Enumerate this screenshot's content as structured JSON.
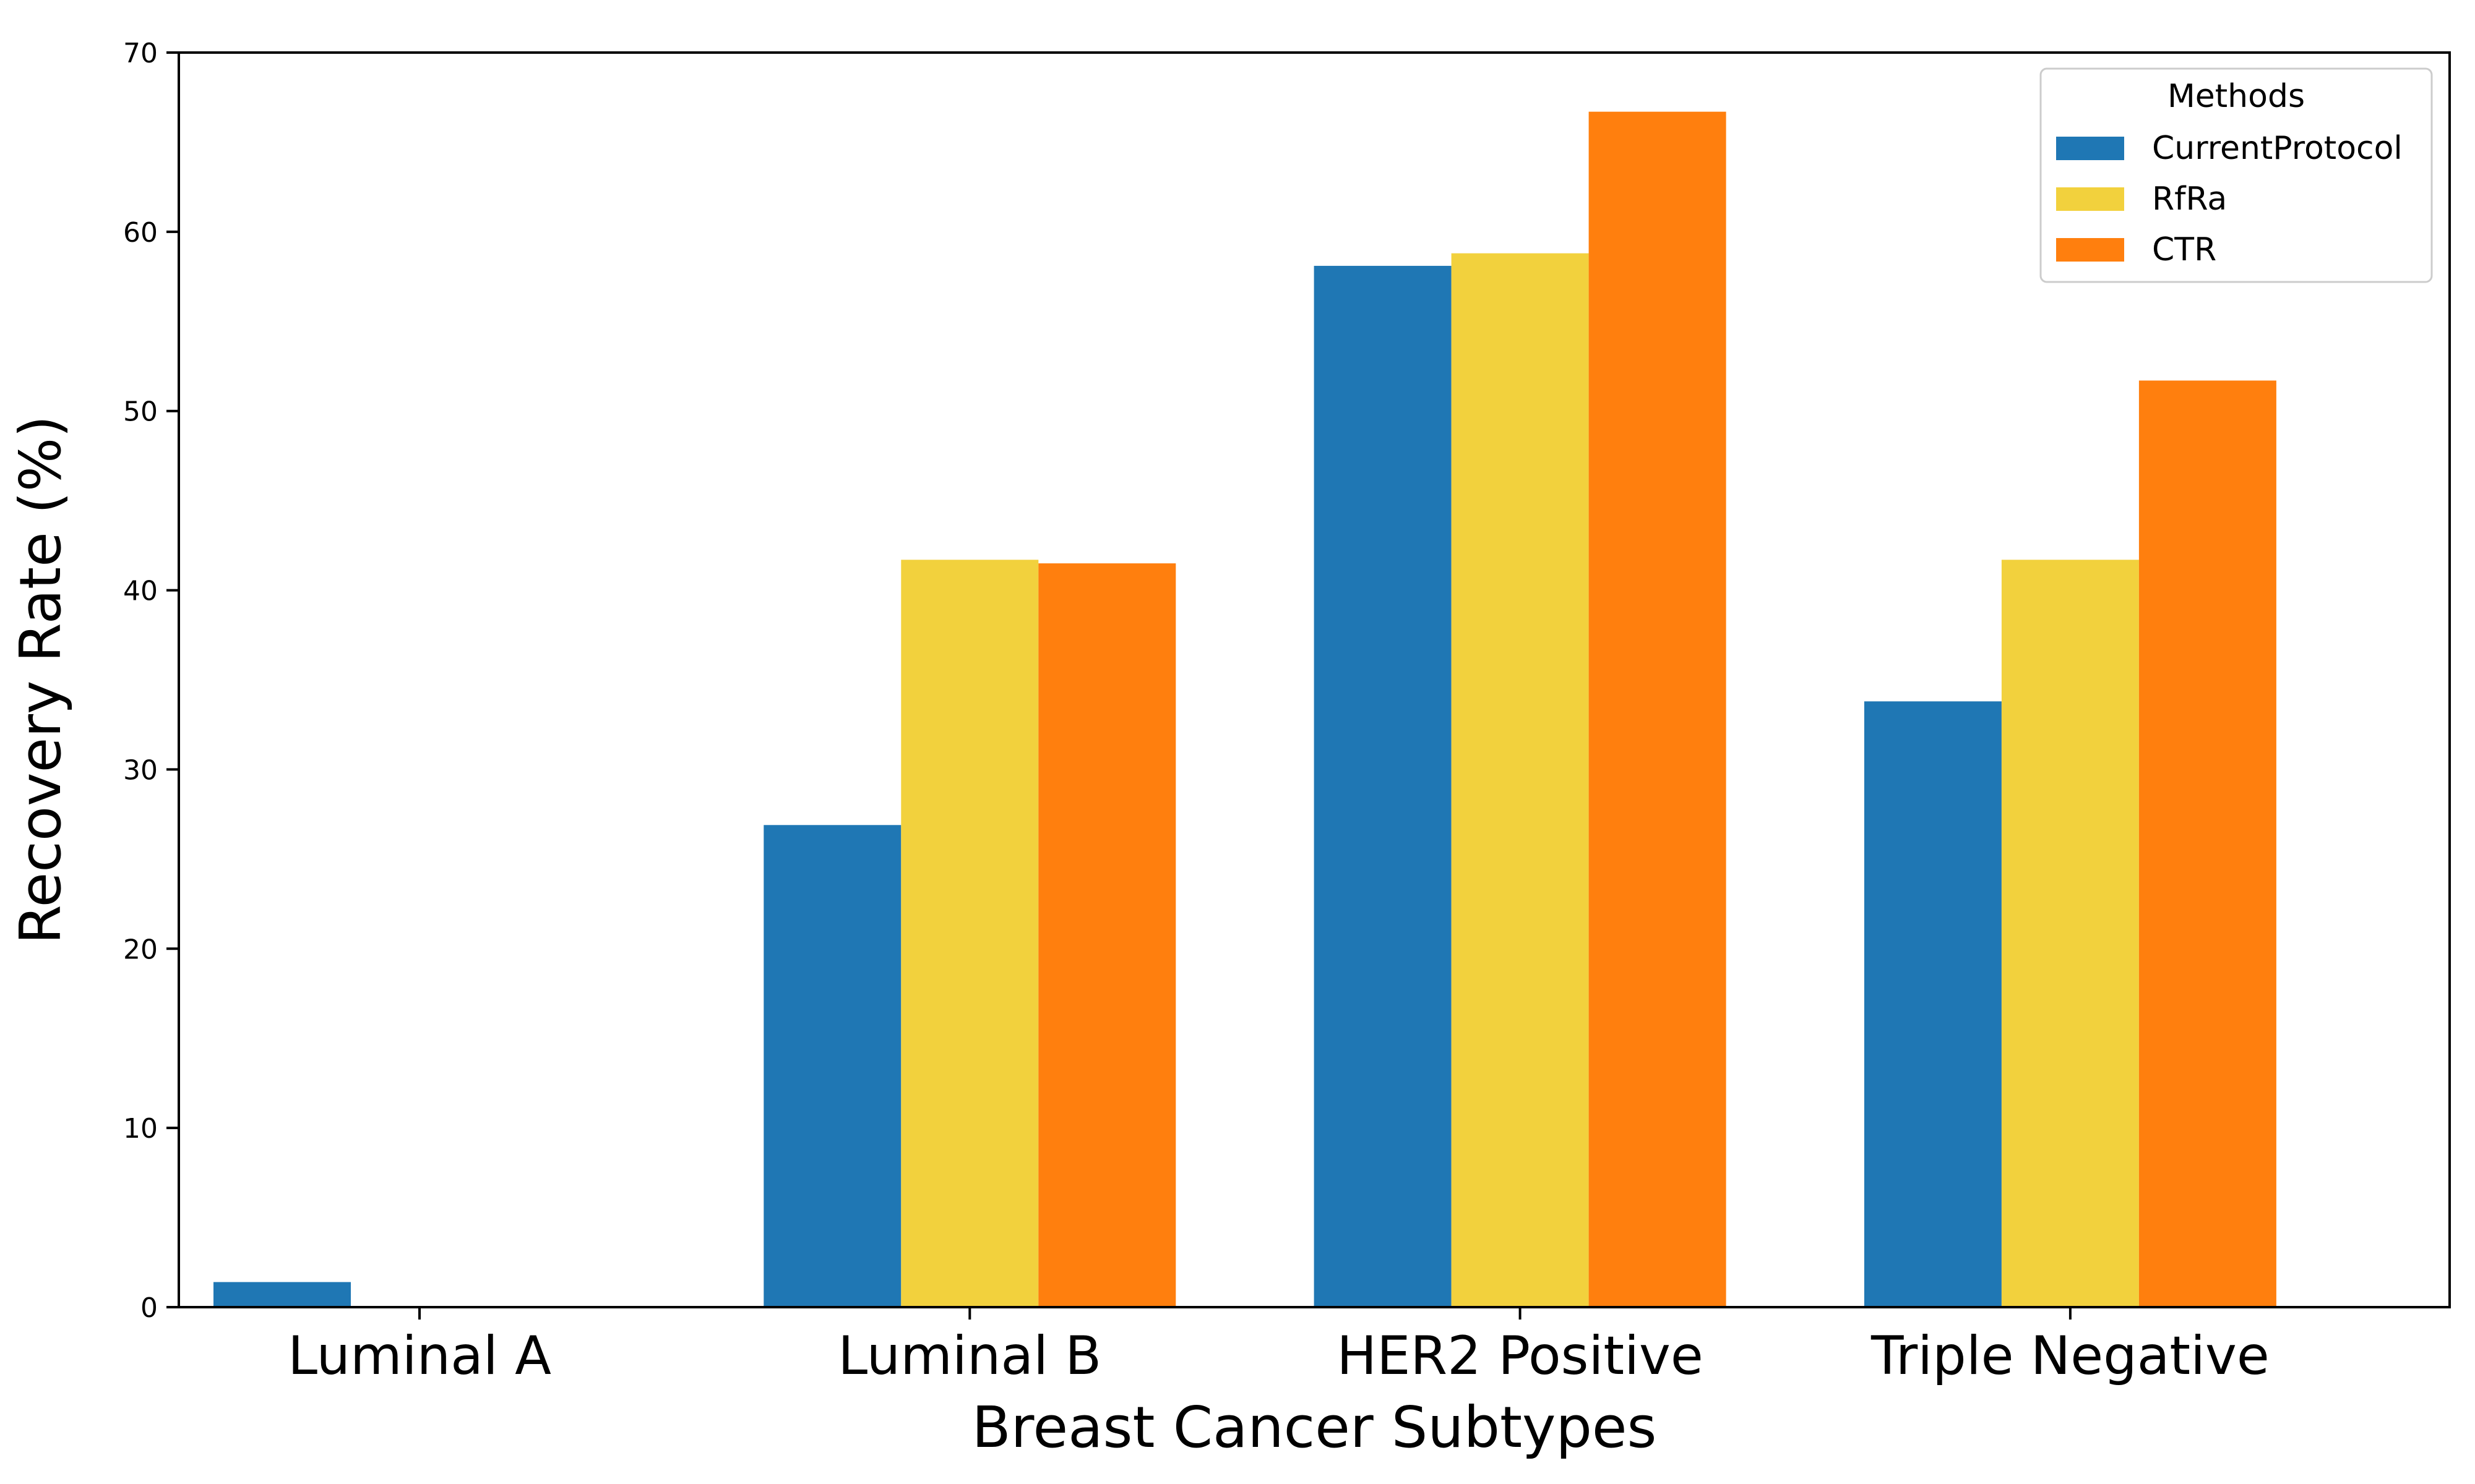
{
  "chart_data": {
    "type": "bar",
    "title": "",
    "xlabel": "Breast Cancer Subtypes",
    "ylabel": "Recovery Rate (%)",
    "categories": [
      "Luminal A",
      "Luminal B",
      "HER2 Positive",
      "Triple Negative"
    ],
    "ylim": [
      0,
      70
    ],
    "yticks": [
      0,
      10,
      20,
      30,
      40,
      50,
      60,
      70
    ],
    "grid": false,
    "legend": {
      "title": "Methods",
      "position": "top-right"
    },
    "series": [
      {
        "name": "CurrentProtocol",
        "color": "#1f77b4",
        "values": [
          1.4,
          26.9,
          58.1,
          33.8
        ]
      },
      {
        "name": "RfRa",
        "color": "#f2d13d",
        "values": [
          0,
          41.7,
          58.8,
          41.7
        ]
      },
      {
        "name": "CTR",
        "color": "#ff7f0e",
        "values": [
          0,
          41.5,
          66.7,
          51.7
        ]
      }
    ]
  }
}
